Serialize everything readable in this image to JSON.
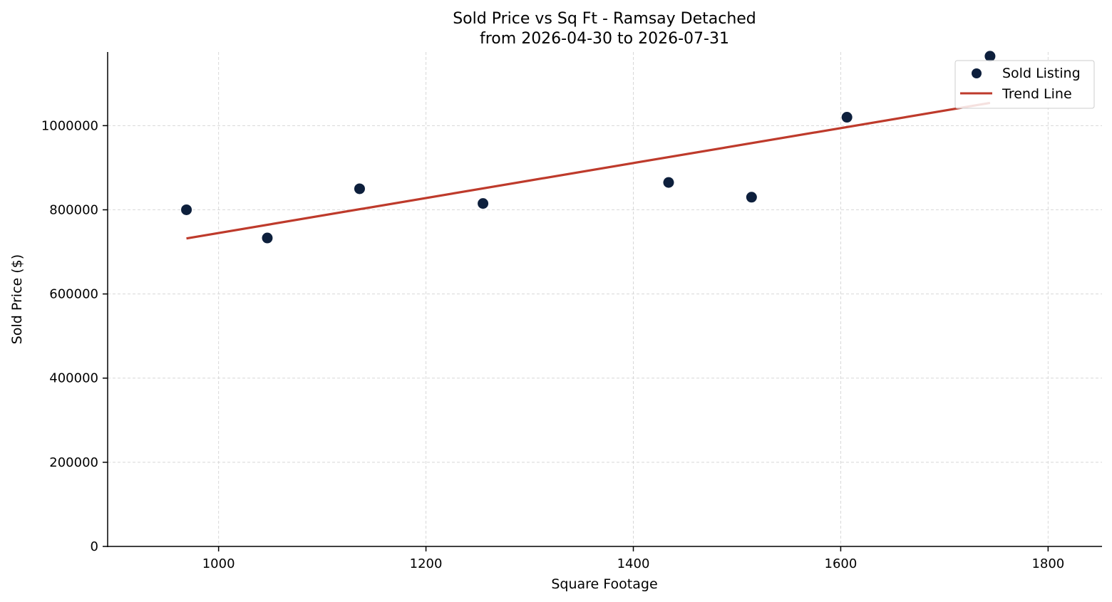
{
  "colors": {
    "point": "#0d1f3c",
    "trend": "#be3a2b",
    "grid": "#d8d8d8",
    "legend_border": "#cccccc"
  },
  "chart_data": {
    "type": "scatter",
    "title": "Sold Price vs Sq Ft - Ramsay Detached",
    "subtitle": "from 2026-04-30 to 2026-07-31",
    "xlabel": "Square Footage",
    "ylabel": "Sold Price ($)",
    "xlim": [
      893,
      1852
    ],
    "ylim": [
      0,
      1175000
    ],
    "xticks": [
      1000,
      1200,
      1400,
      1600,
      1800
    ],
    "yticks": [
      0,
      200000,
      400000,
      600000,
      800000,
      1000000
    ],
    "grid": true,
    "legend_position": "top-right",
    "series": [
      {
        "name": "Sold Listing",
        "kind": "scatter",
        "x": [
          969,
          1047,
          1136,
          1255,
          1434,
          1514,
          1606,
          1744
        ],
        "y": [
          800000,
          733000,
          850000,
          815000,
          865000,
          830000,
          1020000,
          1165000
        ]
      },
      {
        "name": "Trend Line",
        "kind": "line",
        "x": [
          969,
          1744
        ],
        "y": [
          732000,
          1054000
        ]
      }
    ]
  }
}
